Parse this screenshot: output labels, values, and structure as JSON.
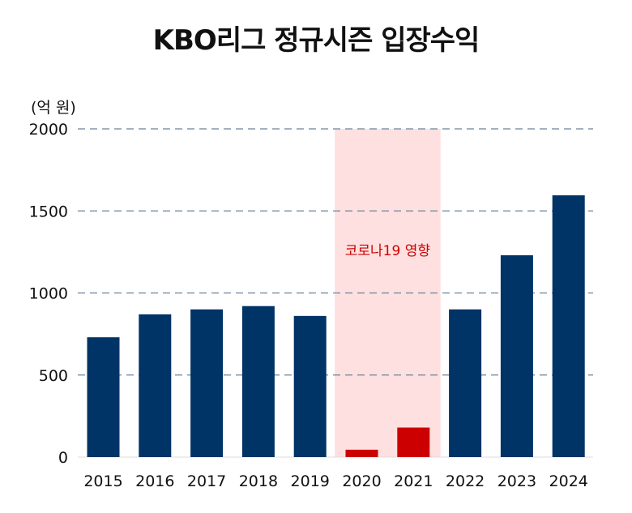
{
  "chart_data": {
    "type": "bar",
    "title": "KBO리그 정규시즌 입장수익",
    "ylabel": "(억 원)",
    "xlabel": "",
    "categories": [
      "2015",
      "2016",
      "2017",
      "2018",
      "2019",
      "2020",
      "2021",
      "2022",
      "2023",
      "2024"
    ],
    "values": [
      730,
      870,
      900,
      920,
      860,
      45,
      180,
      900,
      1230,
      1595
    ],
    "highlight": [
      "2020",
      "2021"
    ],
    "ylim": [
      0,
      2000
    ],
    "yticks": [
      0,
      500,
      1000,
      1500,
      2000
    ],
    "grid": true,
    "annotation": {
      "text": "코로나19 영향",
      "span": [
        "2020",
        "2021"
      ]
    },
    "colors": {
      "bar": "#003366",
      "bar_highlight": "#cc0000",
      "shade": "#ffe0e0",
      "grid": "#6b8299",
      "annotation": "#cc0000"
    }
  }
}
